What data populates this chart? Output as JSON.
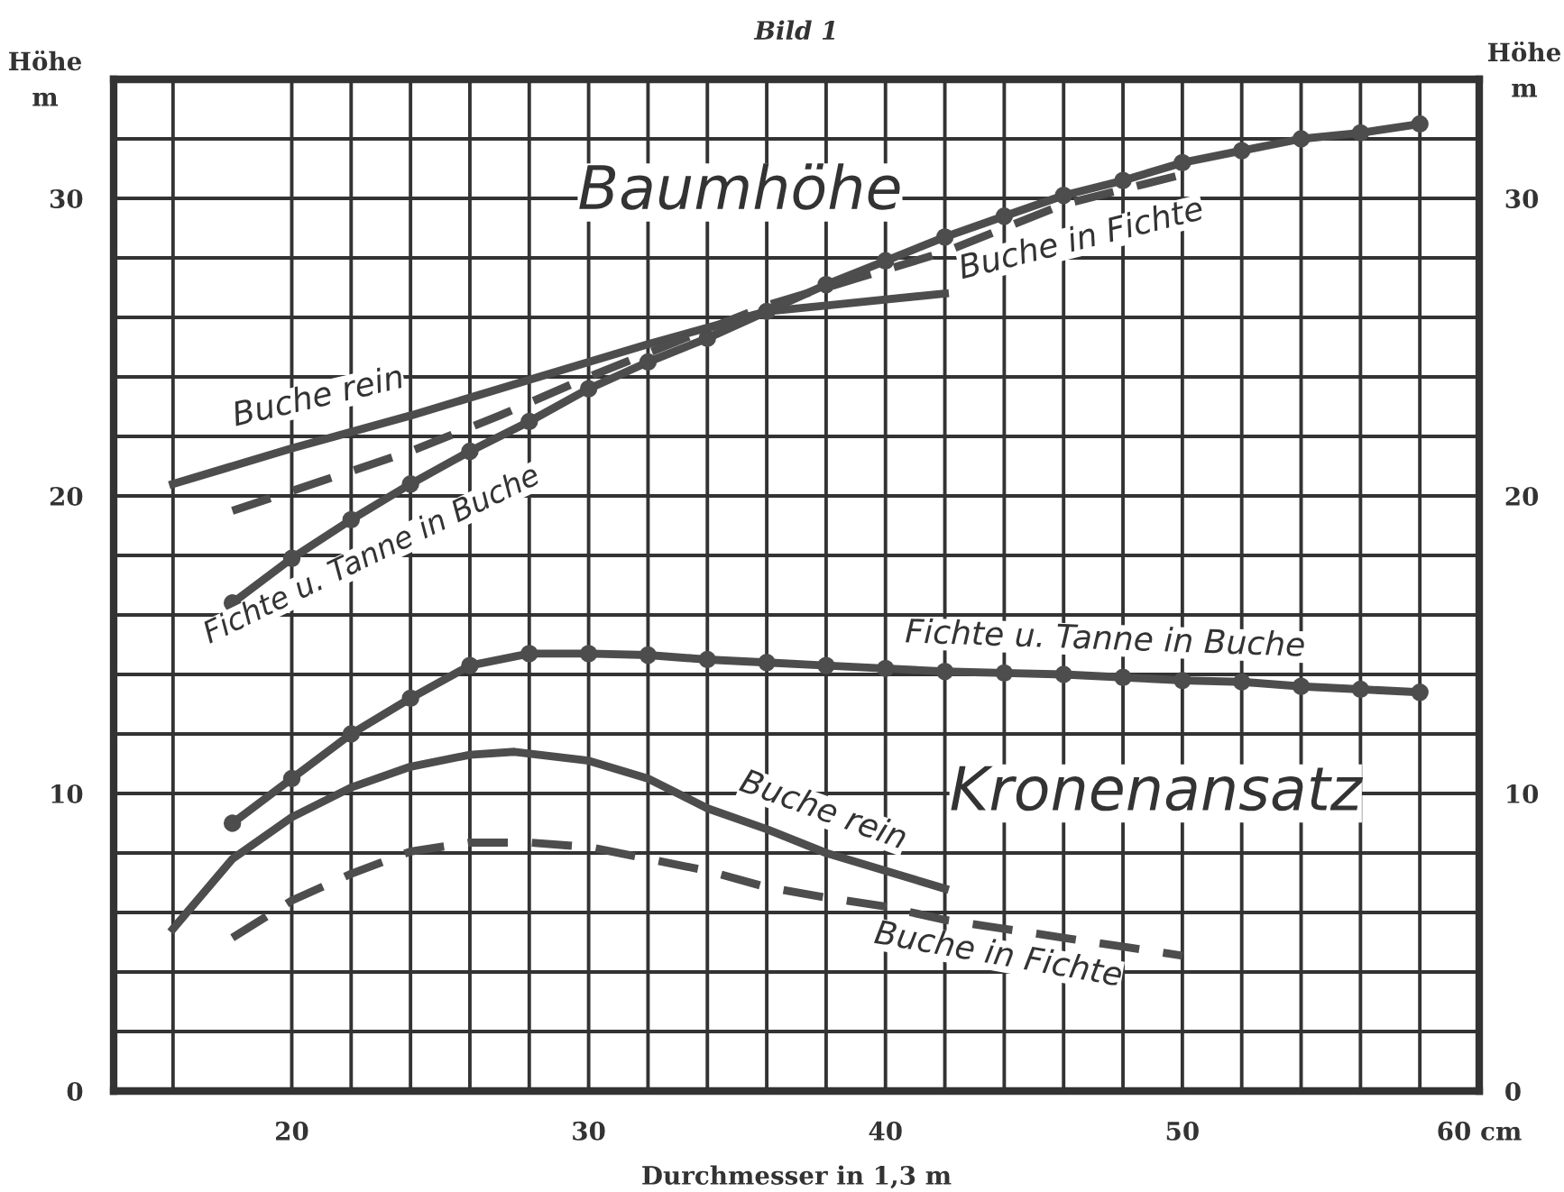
{
  "chart_data": {
    "type": "line",
    "title": "Bild 1",
    "xlabel": "Durchmesser in 1,3 m",
    "ylabel": "Höhe\nm",
    "y2label": "Höhe\nm",
    "xlim": [
      14,
      60
    ],
    "ylim": [
      0,
      34
    ],
    "y2lim": [
      0,
      34
    ],
    "xticks": [
      {
        "value": 16,
        "label": null
      },
      20,
      {
        "value": 22,
        "label": null
      },
      {
        "value": 24,
        "label": null
      },
      {
        "value": 26,
        "label": null
      },
      {
        "value": 28,
        "label": null
      },
      30,
      {
        "value": 32,
        "label": null
      },
      {
        "value": 34,
        "label": null
      },
      {
        "value": 36,
        "label": null
      },
      {
        "value": 38,
        "label": null
      },
      40,
      {
        "value": 42,
        "label": null
      },
      {
        "value": 44,
        "label": null
      },
      {
        "value": 46,
        "label": null
      },
      {
        "value": 48,
        "label": null
      },
      50,
      {
        "value": 52,
        "label": null
      },
      {
        "value": 54,
        "label": null
      },
      {
        "value": 56,
        "label": null
      },
      {
        "value": 58,
        "label": null
      },
      {
        "value": 60,
        "label": "60 cm"
      }
    ],
    "yticks": [
      0,
      {
        "value": 2,
        "label": null
      },
      {
        "value": 4,
        "label": null
      },
      {
        "value": 6,
        "label": null
      },
      {
        "value": 8,
        "label": null
      },
      10,
      {
        "value": 12,
        "label": null
      },
      {
        "value": 14,
        "label": null
      },
      {
        "value": 16,
        "label": null
      },
      {
        "value": 18,
        "label": null
      },
      20,
      {
        "value": 22,
        "label": null
      },
      {
        "value": 24,
        "label": null
      },
      {
        "value": 26,
        "label": null
      },
      {
        "value": 28,
        "label": null
      },
      30,
      {
        "value": 32,
        "label": null
      }
    ],
    "y2ticks": [
      0,
      10,
      20,
      30
    ],
    "grid": true,
    "series": [
      {
        "color": "#4d4d4d",
        "marker": "circle",
        "line_style": "solid",
        "x": [
          18,
          20,
          22,
          24,
          26,
          28,
          30,
          32,
          34,
          36,
          38,
          40,
          42,
          44,
          46,
          48,
          50,
          52,
          54,
          56,
          58
        ],
        "values": [
          16.4,
          17.9,
          19.2,
          20.4,
          21.5,
          22.5,
          23.6,
          24.5,
          25.3,
          26.2,
          27.1,
          27.9,
          28.7,
          29.4,
          30.1,
          30.6,
          31.2,
          31.6,
          32.0,
          32.2,
          32.5
        ]
      },
      {
        "color": "#4d4d4d",
        "marker": "none",
        "line_style": "solid",
        "x": [
          16,
          20,
          24,
          28,
          32,
          36,
          38,
          42
        ],
        "values": [
          20.4,
          21.6,
          22.7,
          23.9,
          25.1,
          26.2,
          26.4,
          26.8
        ]
      },
      {
        "color": "#4d4d4d",
        "marker": "none",
        "line_style": "dashed",
        "x": [
          18,
          21,
          24,
          27,
          30,
          33,
          36,
          39,
          42,
          46,
          50
        ],
        "values": [
          19.5,
          20.5,
          21.5,
          22.7,
          24.0,
          25.2,
          26.4,
          27.3,
          28.2,
          29.8,
          30.8
        ]
      },
      {
        "color": "#4d4d4d",
        "marker": "circle",
        "line_style": "solid",
        "x": [
          18,
          20,
          22,
          24,
          26,
          28,
          30,
          32,
          34,
          36,
          38,
          40,
          42,
          44,
          46,
          48,
          50,
          52,
          54,
          56,
          58
        ],
        "values": [
          9.0,
          10.5,
          12.0,
          13.2,
          14.3,
          14.7,
          14.7,
          14.65,
          14.5,
          14.4,
          14.3,
          14.2,
          14.1,
          14.05,
          14.0,
          13.9,
          13.8,
          13.75,
          13.6,
          13.5,
          13.4
        ]
      },
      {
        "color": "#4d4d4d",
        "marker": "none",
        "line_style": "solid",
        "x": [
          16,
          18,
          20,
          22,
          24,
          26,
          27.5,
          30,
          32,
          34,
          36,
          38,
          40,
          42
        ],
        "values": [
          5.45,
          7.8,
          9.2,
          10.2,
          10.9,
          11.3,
          11.4,
          11.1,
          10.5,
          9.5,
          8.8,
          8.0,
          7.4,
          6.8
        ]
      },
      {
        "color": "#4d4d4d",
        "marker": "none",
        "line_style": "dashed",
        "x": [
          18,
          20,
          22,
          24,
          26,
          28,
          30,
          32,
          34,
          36,
          38,
          40,
          42,
          44,
          46,
          48,
          50
        ],
        "values": [
          5.15,
          6.4,
          7.3,
          8.05,
          8.35,
          8.35,
          8.2,
          7.8,
          7.4,
          6.85,
          6.5,
          6.2,
          5.75,
          5.45,
          5.15,
          4.85,
          4.55
        ]
      }
    ],
    "annotations": [
      "Baumhöhe",
      "Buche rein",
      "Fichte u. Tanne in Buche",
      "Buche in Fichte",
      "Fichte u. Tanne in Buche",
      "Kronenansatz",
      "Buche rein",
      "Buche in Fichte"
    ]
  }
}
